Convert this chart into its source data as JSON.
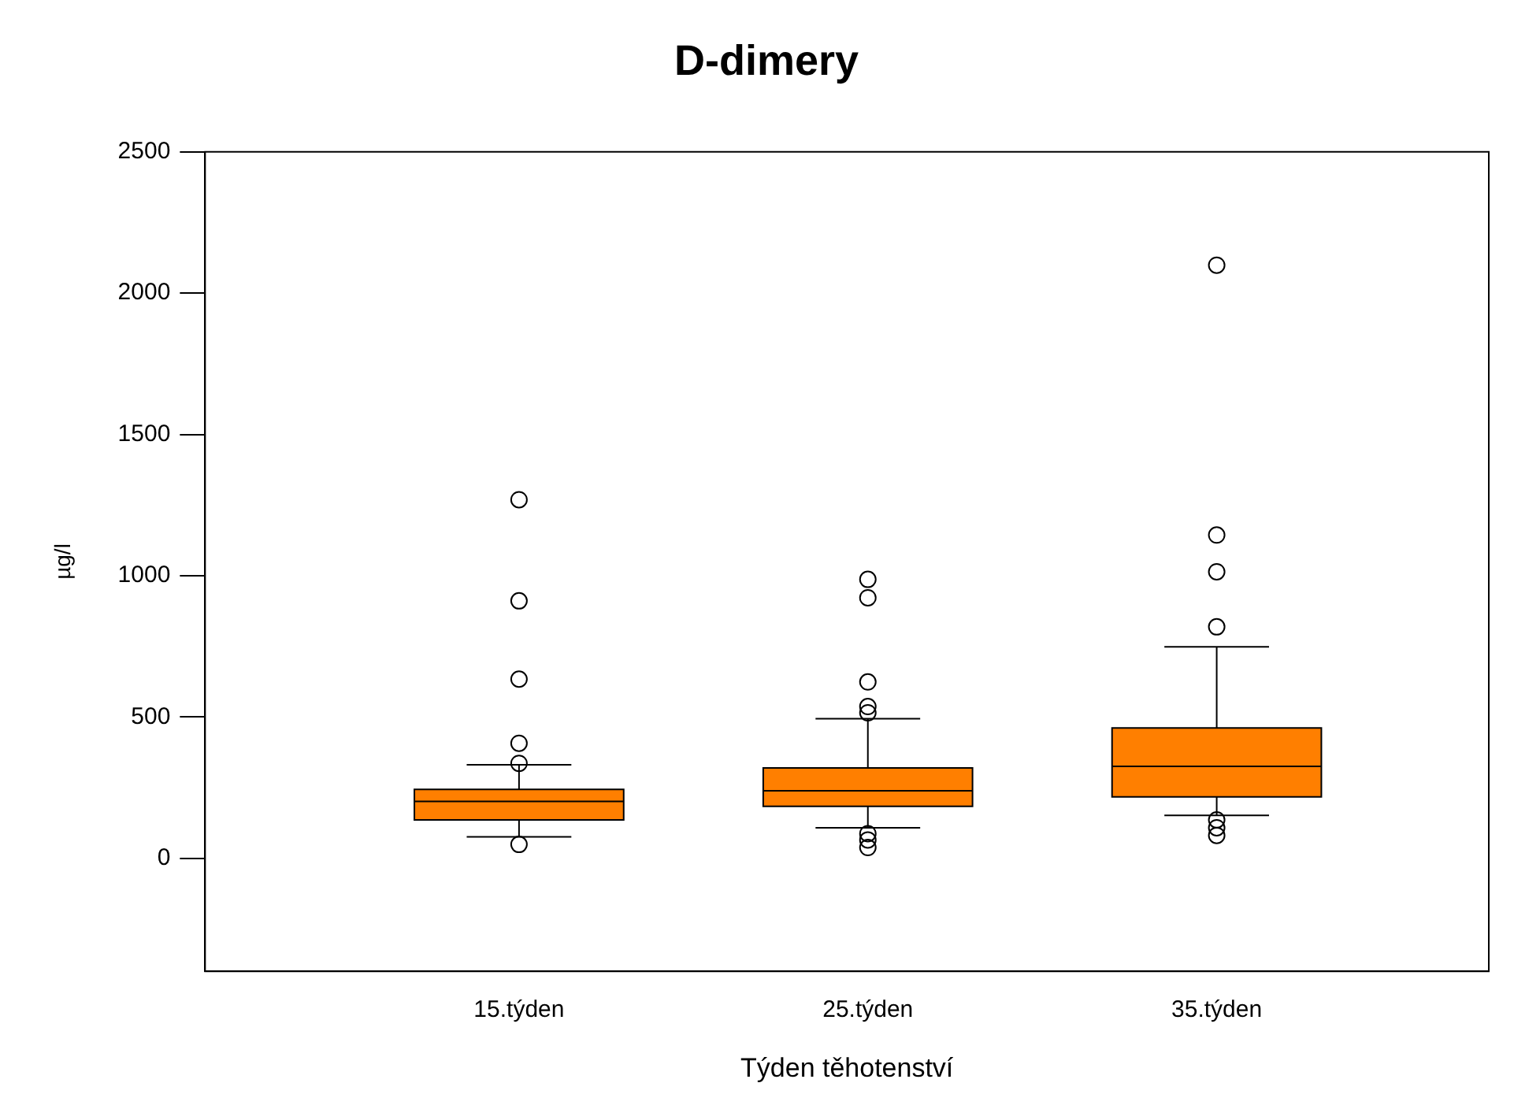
{
  "chart_data": {
    "type": "box",
    "title": "D-dimery",
    "xlabel": "Týden těhotenství",
    "ylabel": "µg/l",
    "categories": [
      "15.týden",
      "25.týden",
      "35.týden"
    ],
    "color": "#ff7f00",
    "boxes": [
      {
        "low": 76,
        "q1": 136,
        "median": 201,
        "q3": 244,
        "high": 331,
        "outliers": [
          1269,
          911,
          634,
          407,
          336,
          49
        ]
      },
      {
        "low": 108,
        "q1": 184,
        "median": 239,
        "q3": 320,
        "high": 494,
        "outliers": [
          987,
          922,
          624,
          537,
          515,
          87,
          65,
          38
        ]
      },
      {
        "low": 152,
        "q1": 217,
        "median": 325,
        "q3": 461,
        "high": 748,
        "outliers": [
          2099,
          1144,
          1014,
          819,
          136,
          108,
          81
        ]
      }
    ],
    "ylim": [
      -400,
      2500
    ],
    "yticks": [
      0,
      500,
      1000,
      1500,
      2000,
      2500
    ],
    "grid": false,
    "legend": false
  }
}
